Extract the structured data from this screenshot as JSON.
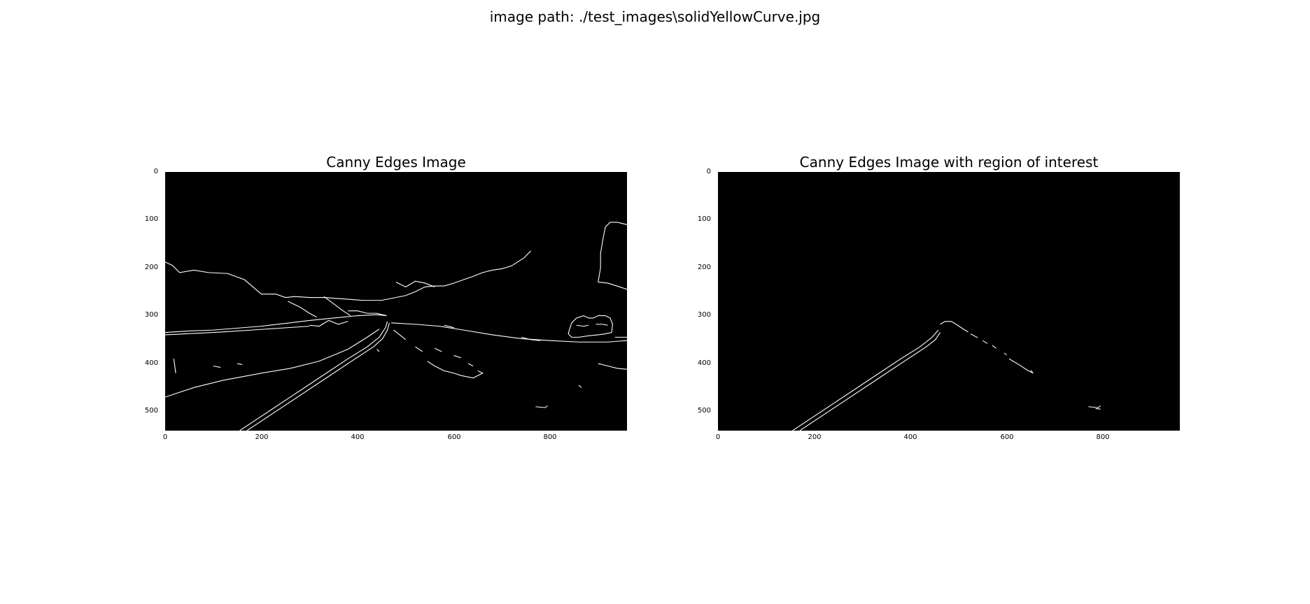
{
  "suptitle": "image path: ./test_images\\solidYellowCurve.jpg",
  "panels": [
    {
      "title": "Canny Edges Image",
      "xticks": [
        "0",
        "200",
        "400",
        "600",
        "800"
      ],
      "yticks": [
        "0",
        "100",
        "200",
        "300",
        "400",
        "500"
      ]
    },
    {
      "title": "Canny Edges Image with region of interest",
      "xticks": [
        "0",
        "200",
        "400",
        "600",
        "800"
      ],
      "yticks": [
        "0",
        "100",
        "200",
        "300",
        "400",
        "500"
      ]
    }
  ],
  "colors": {
    "background": "#000000",
    "edges": "#ffffff"
  }
}
